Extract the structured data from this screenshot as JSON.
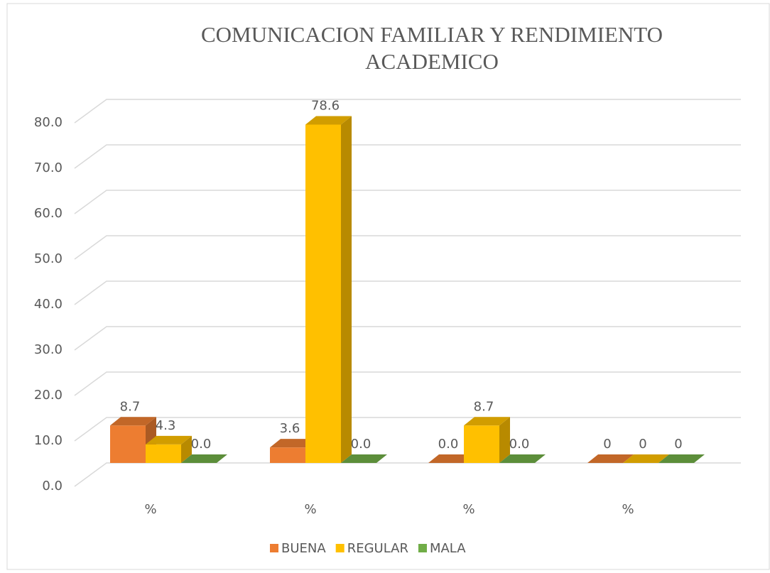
{
  "chart_data": {
    "type": "bar3d",
    "title": "COMUNICACION FAMILIAR Y RENDIMIENTO ACADEMICO",
    "categories": [
      "%",
      "%",
      "%",
      "%"
    ],
    "series": [
      {
        "name": "BUENA",
        "color": "#ED7D31",
        "values": [
          8.7,
          3.6,
          0.0,
          0
        ],
        "value_labels": [
          "8.7",
          "3.6",
          "0.0",
          "0"
        ]
      },
      {
        "name": "REGULAR",
        "color": "#FFC000",
        "values": [
          4.3,
          78.6,
          8.7,
          0
        ],
        "value_labels": [
          "4.3",
          "78.6",
          "8.7",
          "0"
        ]
      },
      {
        "name": "MALA",
        "color": "#70AD47",
        "values": [
          0.0,
          0.0,
          0.0,
          0
        ],
        "value_labels": [
          "0.0",
          "0.0",
          "0.0",
          "0"
        ]
      }
    ],
    "ylim": [
      0,
      80
    ],
    "yticks": [
      {
        "value": 0,
        "label": "0.0"
      },
      {
        "value": 10,
        "label": "10.0"
      },
      {
        "value": 20,
        "label": "20.0"
      },
      {
        "value": 30,
        "label": "30.0"
      },
      {
        "value": 40,
        "label": "40.0"
      },
      {
        "value": 50,
        "label": "50.0"
      },
      {
        "value": 60,
        "label": "60.0"
      },
      {
        "value": 70,
        "label": "70.0"
      },
      {
        "value": 80,
        "label": "80.0"
      }
    ],
    "grid": true,
    "legend": "bottom"
  }
}
